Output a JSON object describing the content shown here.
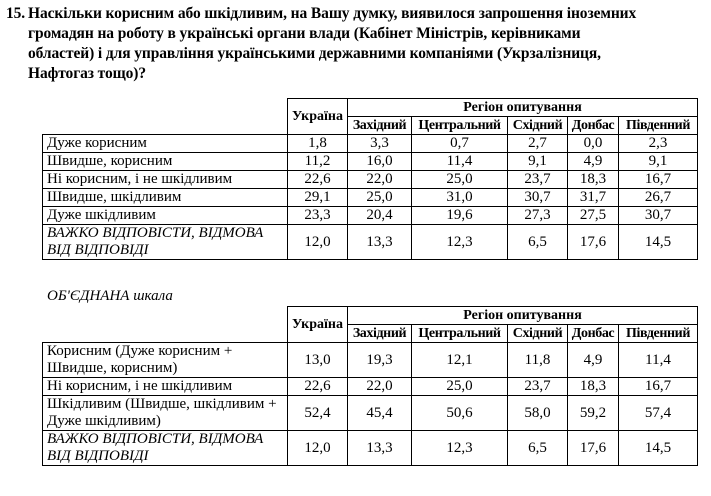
{
  "question": {
    "number": "15.",
    "lines": [
      "Наскільки корисним або шкідливим, на Вашу думку, виявилося запрошення іноземних",
      "громадян на роботу в українські органи влади (Кабінет Міністрів, керівниками",
      "областей) і для управління українськими державними компаніями (Укрзалізниця,",
      "Нафтогаз тощо)?"
    ]
  },
  "columns": {
    "ukraine": "Україна",
    "region_group": "Регіон опитування",
    "regions": [
      "Західний",
      "Центральний",
      "Східний",
      "Донбас",
      "Південний"
    ]
  },
  "table1": {
    "rows": [
      {
        "label": "Дуже корисним",
        "italic": false,
        "values": [
          "1,8",
          "3,3",
          "0,7",
          "2,7",
          "0,0",
          "2,3"
        ]
      },
      {
        "label": "Швидше, корисним",
        "italic": false,
        "values": [
          "11,2",
          "16,0",
          "11,4",
          "9,1",
          "4,9",
          "9,1"
        ]
      },
      {
        "label": "Ні корисним, і не шкідливим",
        "italic": false,
        "values": [
          "22,6",
          "22,0",
          "25,0",
          "23,7",
          "18,3",
          "16,7"
        ]
      },
      {
        "label": "Швидше, шкідливим",
        "italic": false,
        "values": [
          "29,1",
          "25,0",
          "31,0",
          "30,7",
          "31,7",
          "26,7"
        ]
      },
      {
        "label": "Дуже шкідливим",
        "italic": false,
        "values": [
          "23,3",
          "20,4",
          "19,6",
          "27,3",
          "27,5",
          "30,7"
        ]
      },
      {
        "label": "ВАЖКО ВІДПОВІСТИ, ВІДМОВА ВІД ВІДПОВІДІ",
        "italic": true,
        "values": [
          "12,0",
          "13,3",
          "12,3",
          "6,5",
          "17,6",
          "14,5"
        ]
      }
    ]
  },
  "scale_label": "ОБ'ЄДНАНА шкала",
  "table2": {
    "rows": [
      {
        "label": "Корисним (Дуже корисним + Швидше, корисним)",
        "italic": false,
        "values": [
          "13,0",
          "19,3",
          "12,1",
          "11,8",
          "4,9",
          "11,4"
        ]
      },
      {
        "label": "Ні корисним, і не шкідливим",
        "italic": false,
        "values": [
          "22,6",
          "22,0",
          "25,0",
          "23,7",
          "18,3",
          "16,7"
        ]
      },
      {
        "label": "Шкідливим (Швидше, шкідливим + Дуже шкідливим)",
        "italic": false,
        "values": [
          "52,4",
          "45,4",
          "50,6",
          "58,0",
          "59,2",
          "57,4"
        ]
      },
      {
        "label": "ВАЖКО ВІДПОВІСТИ, ВІДМОВА ВІД ВІДПОВІДІ",
        "italic": true,
        "values": [
          "12,0",
          "13,3",
          "12,3",
          "6,5",
          "17,6",
          "14,5"
        ]
      }
    ]
  }
}
